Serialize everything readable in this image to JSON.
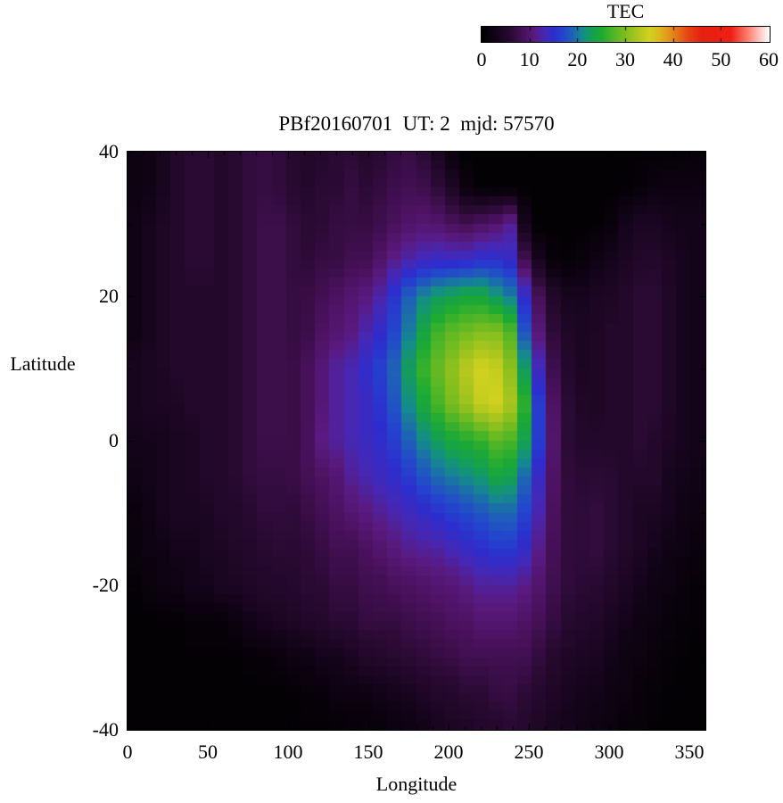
{
  "title": "PBf20160701  UT: 2  mjd: 57570",
  "colorbar": {
    "title": "TEC",
    "min": 0,
    "max": 60,
    "ticks": [
      0,
      10,
      20,
      30,
      40,
      50,
      60
    ],
    "stops": [
      [
        0,
        "#000000"
      ],
      [
        3,
        "#14041a"
      ],
      [
        6,
        "#2a0a33"
      ],
      [
        9,
        "#4c1260"
      ],
      [
        11,
        "#5a1a80"
      ],
      [
        13,
        "#4628b4"
      ],
      [
        15,
        "#2d2dcd"
      ],
      [
        17,
        "#2346cd"
      ],
      [
        19,
        "#1e64b4"
      ],
      [
        21,
        "#148c8c"
      ],
      [
        23,
        "#14a050"
      ],
      [
        25,
        "#1eaa32"
      ],
      [
        27,
        "#46b428"
      ],
      [
        30,
        "#82be1e"
      ],
      [
        33,
        "#b4c81e"
      ],
      [
        35,
        "#d2d21e"
      ],
      [
        37,
        "#dcb91e"
      ],
      [
        40,
        "#e6821a"
      ],
      [
        43,
        "#e64614"
      ],
      [
        46,
        "#e6200f"
      ],
      [
        52,
        "#f01e14"
      ],
      [
        56,
        "#ff8c7d"
      ],
      [
        60,
        "#ffffff"
      ]
    ]
  },
  "axes": {
    "x": {
      "label": "Longitude",
      "min": 0,
      "max": 360,
      "ticks": [
        0,
        50,
        100,
        150,
        200,
        250,
        300,
        350
      ]
    },
    "y": {
      "label": "Latitude",
      "min": -40,
      "max": 40,
      "ticks": [
        40,
        20,
        0,
        -20,
        -40
      ]
    }
  },
  "chart_data": {
    "type": "heatmap",
    "value_name": "TEC",
    "lon_nodes": [
      0,
      10,
      20,
      30,
      40,
      50,
      60,
      70,
      80,
      90,
      100,
      110,
      120,
      130,
      140,
      150,
      160,
      170,
      180,
      190,
      200,
      210,
      220,
      230,
      240,
      250,
      260,
      270,
      280,
      290,
      300,
      310,
      320,
      330,
      340,
      350,
      360
    ],
    "lat_nodes": [
      40,
      35,
      30,
      25,
      20,
      15,
      10,
      5,
      0,
      -5,
      -10,
      -15,
      -20,
      -25,
      -30,
      -35,
      -40
    ],
    "values": [
      [
        2,
        2,
        3,
        5,
        6,
        6,
        5,
        6,
        7,
        7,
        6,
        5,
        5,
        6,
        6,
        5,
        6,
        7,
        7,
        5,
        2,
        0.5,
        0.5,
        0.5,
        0.5,
        0.5,
        0.5,
        0.5,
        0.5,
        0.5,
        0.5,
        0.5,
        0.5,
        0.5,
        0.5,
        1,
        1
      ],
      [
        2,
        2,
        3,
        5,
        6,
        6,
        5,
        6,
        7,
        7,
        6,
        5,
        6,
        6,
        7,
        6,
        7,
        8,
        8,
        7,
        5,
        2,
        0.5,
        0.5,
        0.5,
        0.5,
        0.5,
        0.5,
        0.5,
        0.5,
        0.5,
        0.5,
        1,
        2,
        2,
        2,
        2
      ],
      [
        2,
        3,
        4,
        5,
        6,
        6,
        5,
        6,
        7,
        8,
        7,
        6,
        6,
        7,
        7,
        7,
        8,
        9,
        10,
        10,
        9,
        8,
        9,
        10,
        12,
        0.5,
        0.5,
        0.5,
        0.5,
        0.5,
        1,
        3,
        4,
        4,
        3,
        3,
        3
      ],
      [
        2,
        3,
        4,
        5,
        6,
        6,
        5,
        6,
        7,
        8,
        7,
        6,
        7,
        7,
        8,
        8,
        10,
        12,
        13,
        14,
        14,
        14,
        15,
        15,
        14,
        6,
        2,
        0.5,
        1,
        2,
        3,
        4,
        5,
        5,
        4,
        3,
        3
      ],
      [
        2,
        3,
        4,
        5,
        5,
        5,
        5,
        6,
        7,
        8,
        7,
        7,
        8,
        9,
        10,
        11,
        13,
        17,
        20,
        22,
        23,
        24,
        24,
        22,
        20,
        13,
        6,
        4,
        3,
        4,
        4,
        5,
        6,
        6,
        4,
        3,
        3
      ],
      [
        2,
        3,
        4,
        5,
        5,
        5,
        5,
        6,
        7,
        8,
        7,
        7,
        9,
        10,
        11,
        13,
        15,
        18,
        22,
        26,
        28,
        29,
        30,
        30,
        27,
        15,
        8,
        5,
        4,
        4,
        5,
        5,
        6,
        6,
        4,
        3,
        3
      ],
      [
        3,
        4,
        4,
        5,
        5,
        5,
        5,
        6,
        7,
        8,
        7,
        8,
        10,
        12,
        13,
        15,
        17,
        20,
        25,
        28,
        30,
        33,
        35,
        34,
        30,
        20,
        10,
        6,
        4,
        4,
        5,
        5,
        6,
        6,
        4,
        3,
        3
      ],
      [
        3,
        4,
        4,
        4,
        5,
        5,
        5,
        6,
        7,
        8,
        7,
        8,
        10,
        12,
        13,
        14,
        16,
        19,
        23,
        26,
        29,
        31,
        34,
        35,
        32,
        24,
        12,
        7,
        5,
        4,
        5,
        5,
        6,
        6,
        4,
        3,
        3
      ],
      [
        3,
        3,
        3,
        4,
        4,
        5,
        5,
        6,
        7,
        8,
        7,
        8,
        11,
        12,
        13,
        14,
        15,
        17,
        20,
        22,
        24,
        25,
        26,
        28,
        27,
        22,
        13,
        7,
        5,
        5,
        5,
        5,
        6,
        5,
        4,
        3,
        3
      ],
      [
        2,
        3,
        3,
        4,
        4,
        5,
        5,
        6,
        7,
        7,
        7,
        8,
        9,
        10,
        12,
        13,
        14,
        15,
        17,
        19,
        20,
        21,
        22,
        24,
        23,
        18,
        12,
        7,
        6,
        6,
        6,
        5,
        5,
        5,
        3,
        3,
        2
      ],
      [
        1,
        2,
        3,
        4,
        4,
        4,
        5,
        5,
        6,
        7,
        6,
        7,
        8,
        9,
        10,
        11,
        12,
        13,
        14,
        15,
        16,
        17,
        18,
        19,
        19,
        16,
        11,
        7,
        6,
        7,
        6,
        5,
        4,
        4,
        3,
        2,
        2
      ],
      [
        1,
        2,
        2,
        3,
        3,
        4,
        4,
        5,
        5,
        6,
        6,
        6,
        7,
        8,
        8,
        9,
        10,
        11,
        12,
        12,
        13,
        14,
        15,
        16,
        16,
        14,
        10,
        7,
        6,
        7,
        6,
        5,
        4,
        3,
        2,
        2,
        1
      ],
      [
        0.5,
        1,
        2,
        2,
        3,
        3,
        4,
        4,
        5,
        5,
        5,
        6,
        6,
        7,
        7,
        8,
        8,
        9,
        9,
        10,
        10,
        11,
        12,
        12,
        12,
        11,
        9,
        7,
        6,
        6,
        5,
        4,
        3,
        2,
        2,
        1,
        1
      ],
      [
        0.5,
        0.5,
        0.5,
        0.5,
        1,
        1,
        1,
        2,
        3,
        4,
        4,
        5,
        5,
        6,
        6,
        7,
        7,
        7,
        8,
        8,
        9,
        9,
        10,
        10,
        10,
        9,
        8,
        6,
        5,
        5,
        4,
        3,
        2,
        2,
        1,
        1,
        0.5
      ],
      [
        0.5,
        0.5,
        0.5,
        0.5,
        0.5,
        0.5,
        0.5,
        0.5,
        1,
        1,
        2,
        2,
        3,
        3,
        4,
        5,
        5,
        6,
        6,
        7,
        7,
        8,
        8,
        8,
        8,
        8,
        6,
        5,
        4,
        4,
        3,
        2,
        2,
        1,
        1,
        0.5,
        0.5
      ],
      [
        0.5,
        0.5,
        0.5,
        0.5,
        0.5,
        0.5,
        0.5,
        0.5,
        0.5,
        0.5,
        0.5,
        1,
        1,
        2,
        2,
        2,
        3,
        3,
        4,
        5,
        5,
        6,
        6,
        7,
        7,
        6,
        5,
        4,
        3,
        3,
        2,
        2,
        1,
        1,
        0.5,
        0.5,
        0.5
      ],
      [
        0.5,
        0.5,
        0.5,
        0.5,
        0.5,
        0.5,
        0.5,
        0.5,
        0.5,
        0.5,
        0.5,
        0.5,
        0.5,
        0.5,
        1,
        1,
        1,
        2,
        2,
        3,
        4,
        4,
        5,
        5,
        6,
        5,
        4,
        3,
        3,
        2,
        2,
        1,
        1,
        0.5,
        0.5,
        0.5,
        0.5
      ]
    ]
  }
}
